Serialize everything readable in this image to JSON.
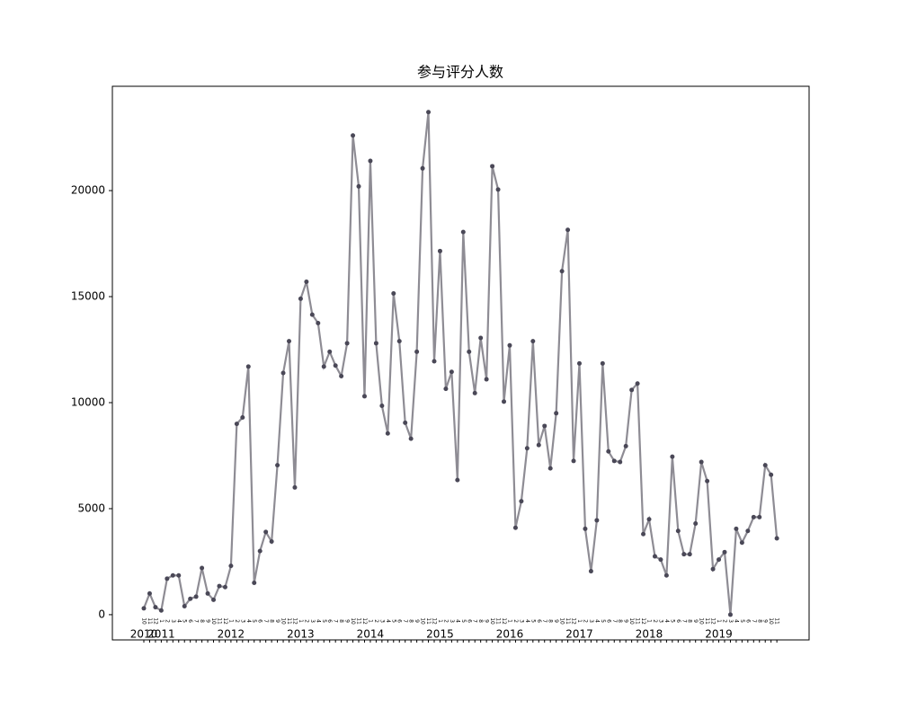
{
  "chart_data": {
    "type": "line",
    "title": "参与评分人数",
    "categories": [
      "10",
      "11",
      "12",
      "1",
      "2",
      "3",
      "4",
      "5",
      "6",
      "7",
      "8",
      "9",
      "10",
      "11",
      "12",
      "1",
      "2",
      "3",
      "4",
      "5",
      "6",
      "7",
      "8",
      "9",
      "10",
      "11",
      "12",
      "1",
      "2",
      "3",
      "4",
      "5",
      "6",
      "7",
      "8",
      "9",
      "10",
      "11",
      "12",
      "1",
      "2",
      "3",
      "4",
      "5",
      "6",
      "7",
      "8",
      "9",
      "10",
      "11",
      "12",
      "1",
      "2",
      "3",
      "4",
      "5",
      "6",
      "7",
      "8",
      "9",
      "10",
      "11",
      "12",
      "1",
      "2",
      "3",
      "4",
      "5",
      "6",
      "7",
      "8",
      "9",
      "10",
      "11",
      "12",
      "1",
      "2",
      "3",
      "4",
      "5",
      "6",
      "7",
      "8",
      "9",
      "10",
      "11",
      "12",
      "1",
      "2",
      "3",
      "4",
      "5",
      "6",
      "7",
      "8",
      "9",
      "10",
      "11",
      "12",
      "1",
      "2",
      "3",
      "4",
      "5",
      "6",
      "7",
      "8",
      "9",
      "10",
      "11"
    ],
    "year_labels": [
      {
        "at": 0,
        "label": "2010"
      },
      {
        "at": 3,
        "label": "2011"
      },
      {
        "at": 15,
        "label": "2012"
      },
      {
        "at": 27,
        "label": "2013"
      },
      {
        "at": 39,
        "label": "2014"
      },
      {
        "at": 51,
        "label": "2015"
      },
      {
        "at": 63,
        "label": "2016"
      },
      {
        "at": 75,
        "label": "2017"
      },
      {
        "at": 87,
        "label": "2018"
      },
      {
        "at": 99,
        "label": "2019"
      }
    ],
    "series": [
      {
        "name": "参与评分人数",
        "color": "#8e8c94",
        "marker_color": "#4a4857",
        "values": [
          300,
          1000,
          350,
          200,
          1700,
          1850,
          1850,
          400,
          750,
          850,
          2200,
          1000,
          700,
          1350,
          1300,
          2300,
          9000,
          9300,
          11700,
          1500,
          3000,
          3900,
          3450,
          7050,
          11400,
          12900,
          6000,
          14900,
          15700,
          14150,
          13750,
          11700,
          12400,
          11750,
          11250,
          12800,
          22600,
          20200,
          10300,
          21400,
          12800,
          9850,
          8550,
          15150,
          12900,
          9050,
          8300,
          12400,
          21050,
          23700,
          11950,
          17150,
          10650,
          11450,
          6350,
          18050,
          12400,
          10450,
          13050,
          11100,
          21150,
          20050,
          10050,
          12700,
          4100,
          5350,
          7850,
          12900,
          8000,
          8900,
          6900,
          9500,
          16200,
          18150,
          7250,
          11850,
          4050,
          2050,
          4450,
          11850,
          7700,
          7250,
          7200,
          7950,
          10600,
          10900,
          3800,
          4500,
          2750,
          2600,
          1850,
          7450,
          3950,
          2850,
          2850,
          4300,
          7200,
          6300,
          2150,
          2600,
          2950,
          0,
          4050,
          3400,
          3950,
          4600,
          4600,
          7050,
          6600,
          3600
        ]
      }
    ],
    "ylim": [
      -1190,
      24920
    ],
    "yticks": [
      0,
      5000,
      10000,
      15000,
      20000
    ]
  }
}
